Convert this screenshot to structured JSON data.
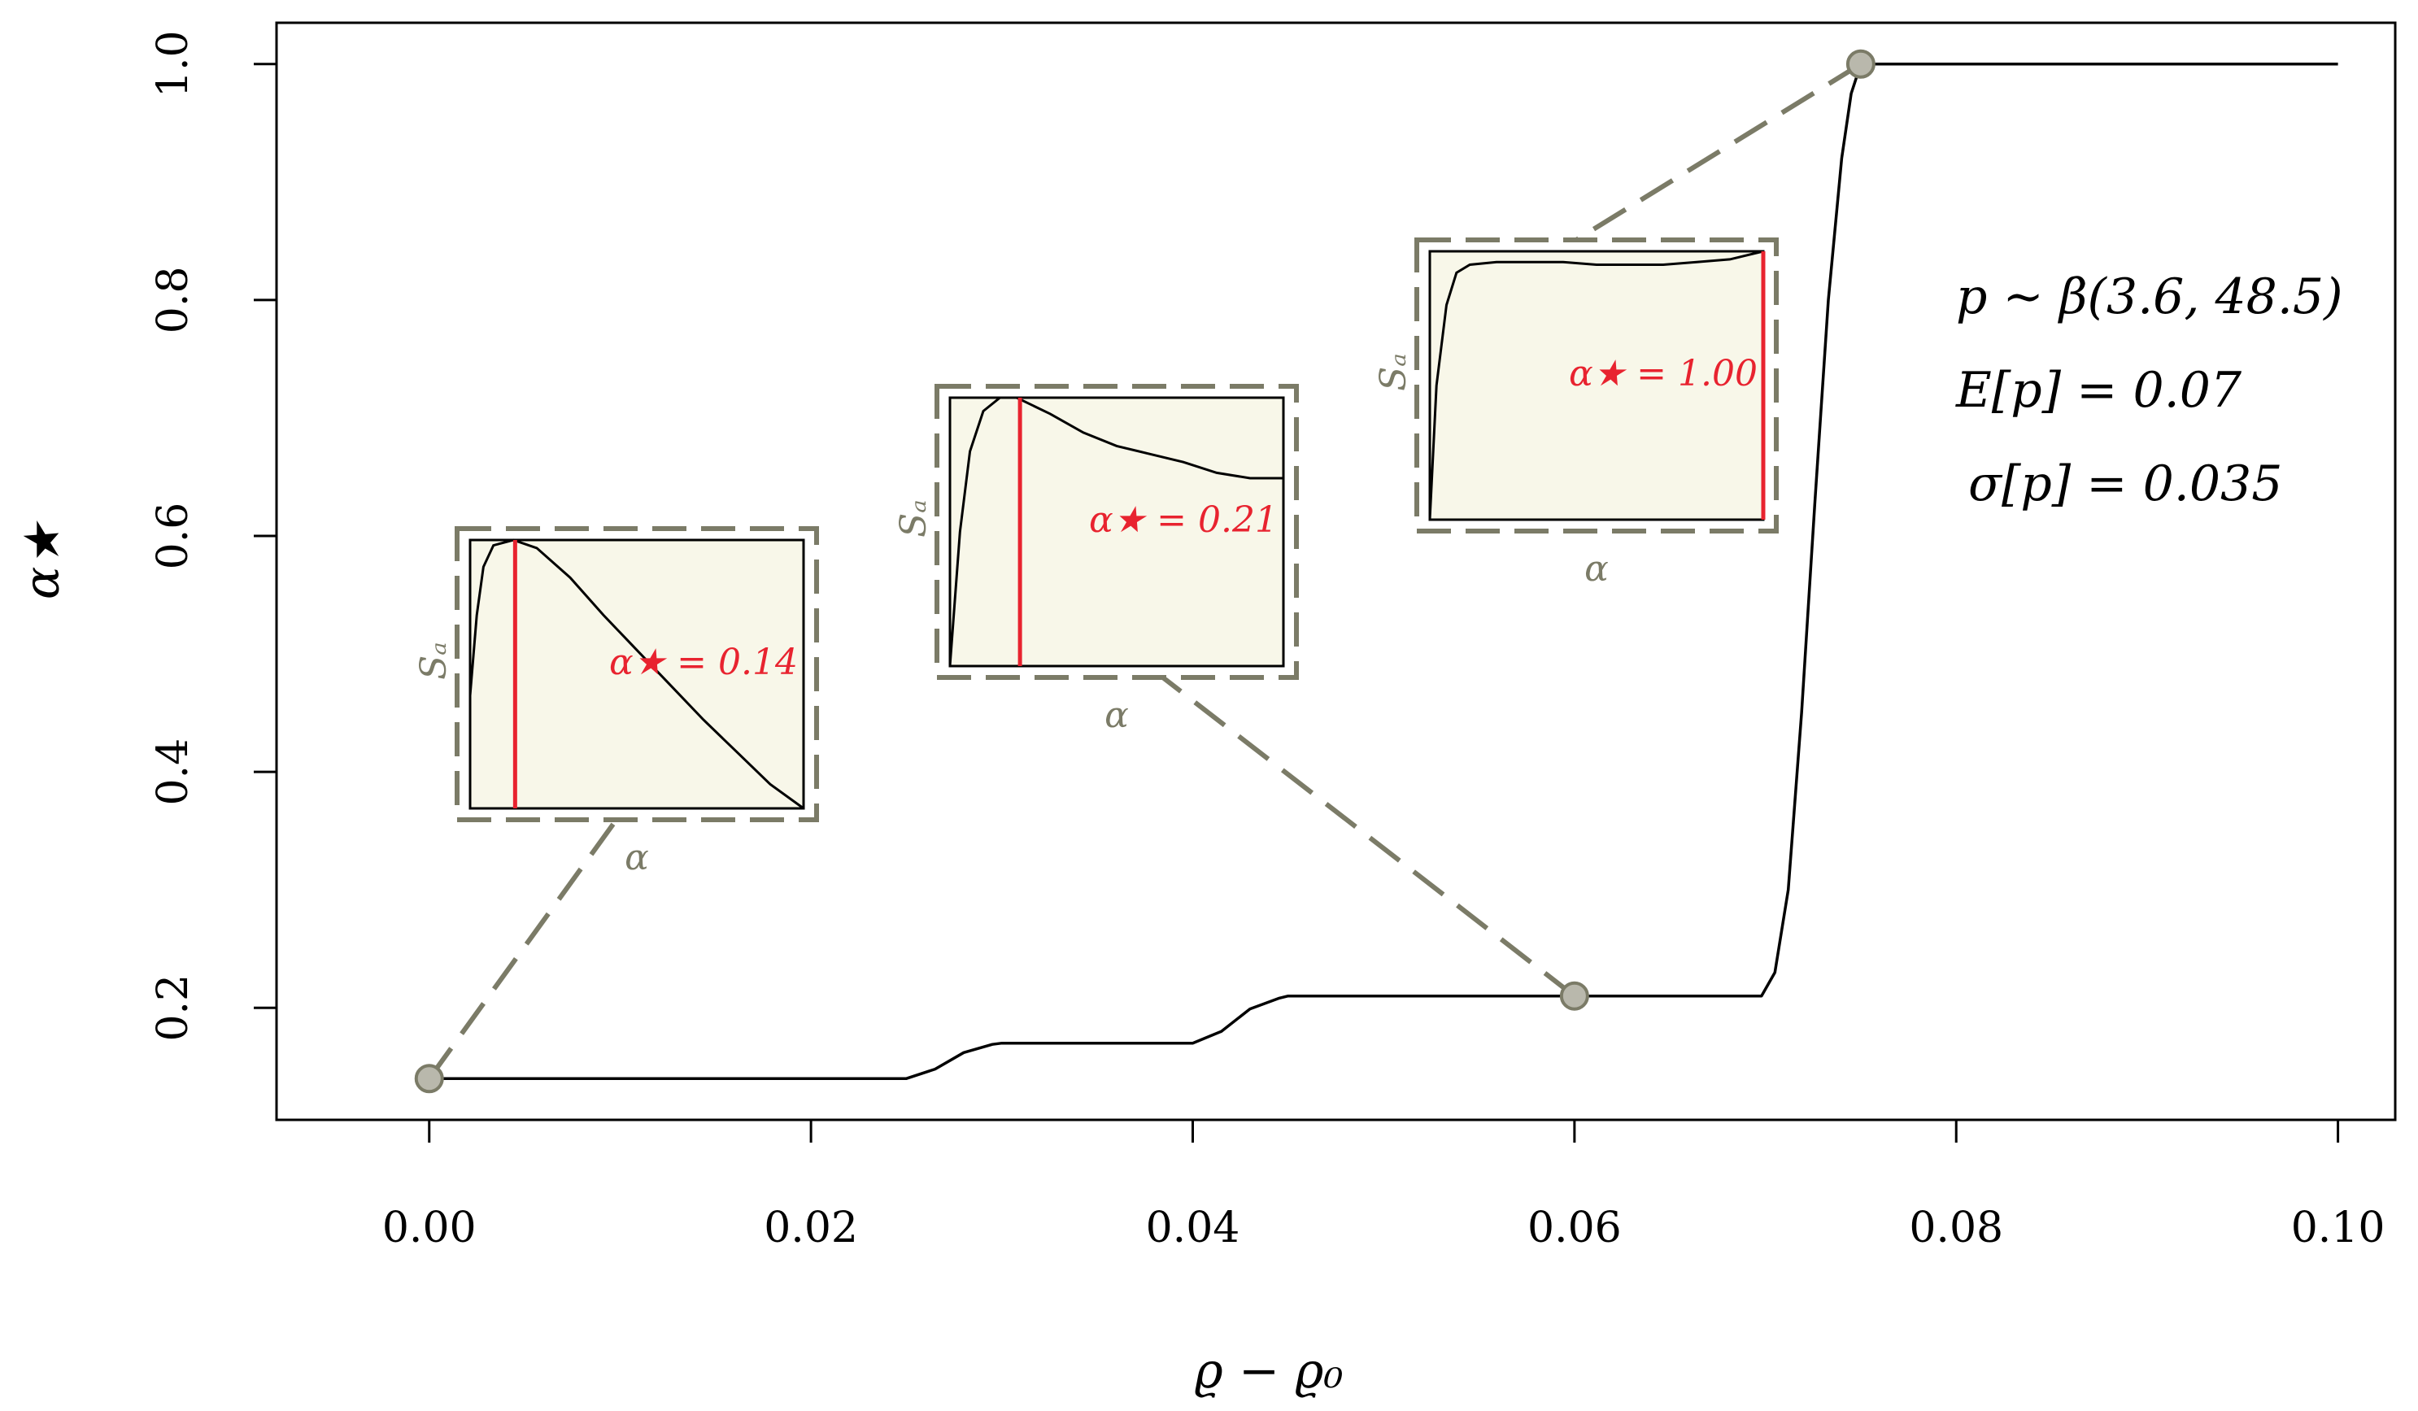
{
  "chart_data": {
    "type": "line",
    "title": "",
    "xlabel": "ϱ − ϱ₀",
    "ylabel": "α★",
    "xlim": [
      -0.008,
      0.103
    ],
    "ylim": [
      0.105,
      1.035
    ],
    "x_ticks": [
      "0.00",
      "0.02",
      "0.04",
      "0.06",
      "0.08",
      "0.10"
    ],
    "x_tick_values": [
      0.0,
      0.02,
      0.04,
      0.06,
      0.08,
      0.1
    ],
    "y_ticks": [
      "0.2",
      "0.4",
      "0.6",
      "0.8",
      "1.0"
    ],
    "y_tick_values": [
      0.2,
      0.4,
      0.6,
      0.8,
      1.0
    ],
    "grid": false,
    "series": [
      {
        "x": [
          0.0,
          0.025,
          0.0265,
          0.028,
          0.0295,
          0.03,
          0.04,
          0.0415,
          0.043,
          0.0445,
          0.045,
          0.0698,
          0.0705,
          0.0712,
          0.0719,
          0.0726,
          0.0733,
          0.074,
          0.0745,
          0.075,
          0.1
        ],
        "y": [
          0.14,
          0.14,
          0.148,
          0.162,
          0.169,
          0.17,
          0.17,
          0.18,
          0.199,
          0.208,
          0.21,
          0.21,
          0.23,
          0.3,
          0.45,
          0.63,
          0.8,
          0.92,
          0.975,
          1.0,
          1.0
        ]
      }
    ],
    "markers": [
      {
        "x": 0.0,
        "y": 0.14
      },
      {
        "x": 0.06,
        "y": 0.21
      },
      {
        "x": 0.075,
        "y": 1.0
      }
    ],
    "annotations": [
      "p ∼ β(3.6, 48.5)",
      "E[p] = 0.07",
      "σ[p] = 0.035"
    ],
    "insets": [
      {
        "xlabel": "α",
        "ylabel": "Sₐ",
        "annotation": "α★ = 0.14",
        "curve": [
          [
            0.0,
            0.42
          ],
          [
            0.02,
            0.72
          ],
          [
            0.04,
            0.9
          ],
          [
            0.07,
            0.98
          ],
          [
            0.13,
            1.0
          ],
          [
            0.2,
            0.97
          ],
          [
            0.3,
            0.86
          ],
          [
            0.4,
            0.72
          ],
          [
            0.5,
            0.59
          ],
          [
            0.6,
            0.46
          ],
          [
            0.7,
            0.33
          ],
          [
            0.8,
            0.21
          ],
          [
            0.9,
            0.09
          ],
          [
            1.0,
            0.0
          ]
        ],
        "marker_x": 0.135
      },
      {
        "xlabel": "α",
        "ylabel": "Sₐ",
        "annotation": "α★ = 0.21",
        "curve": [
          [
            0.0,
            0.0
          ],
          [
            0.03,
            0.5
          ],
          [
            0.06,
            0.8
          ],
          [
            0.1,
            0.95
          ],
          [
            0.15,
            1.0
          ],
          [
            0.2,
            1.0
          ],
          [
            0.3,
            0.94
          ],
          [
            0.4,
            0.87
          ],
          [
            0.5,
            0.82
          ],
          [
            0.6,
            0.79
          ],
          [
            0.7,
            0.76
          ],
          [
            0.8,
            0.72
          ],
          [
            0.9,
            0.7
          ],
          [
            1.0,
            0.7
          ]
        ],
        "marker_x": 0.21
      },
      {
        "xlabel": "α",
        "ylabel": "Sₐ",
        "annotation": "α★ = 1.00",
        "curve": [
          [
            0.0,
            0.0
          ],
          [
            0.02,
            0.5
          ],
          [
            0.05,
            0.8
          ],
          [
            0.08,
            0.92
          ],
          [
            0.12,
            0.95
          ],
          [
            0.2,
            0.96
          ],
          [
            0.3,
            0.96
          ],
          [
            0.4,
            0.96
          ],
          [
            0.5,
            0.95
          ],
          [
            0.6,
            0.95
          ],
          [
            0.7,
            0.95
          ],
          [
            0.8,
            0.96
          ],
          [
            0.9,
            0.97
          ],
          [
            1.0,
            1.0
          ]
        ],
        "marker_x": 1.0
      }
    ]
  }
}
